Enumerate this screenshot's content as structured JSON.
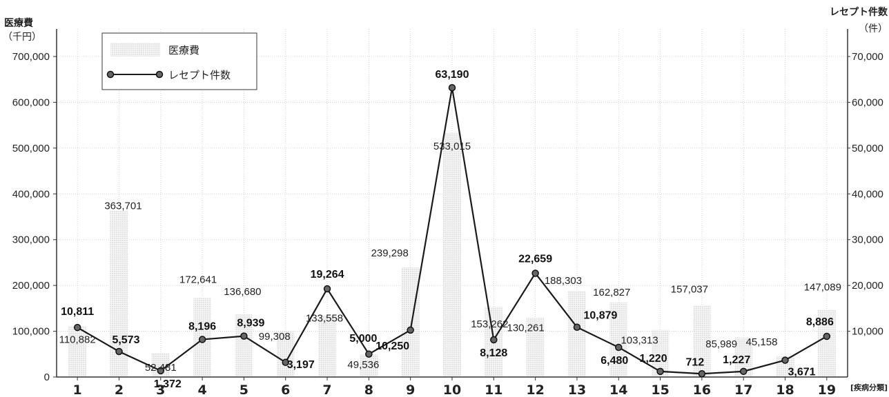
{
  "chart_data": {
    "type": "bar",
    "left_axis": {
      "label": "医療費",
      "unit": "（千円）",
      "ylim": [
        0,
        700000
      ],
      "ticks": [
        "0",
        "100,000",
        "200,000",
        "300,000",
        "400,000",
        "500,000",
        "600,000",
        "700,000"
      ]
    },
    "right_axis": {
      "label": "レセプト件数",
      "unit": "（件）",
      "ylim": [
        0,
        70000
      ],
      "ticks": [
        "10,000",
        "20,000",
        "30,000",
        "40,000",
        "50,000",
        "60,000",
        "70,000"
      ]
    },
    "x_category_label": "[疾病分類]",
    "categories": [
      "1",
      "2",
      "3",
      "4",
      "5",
      "6",
      "7",
      "8",
      "9",
      "10",
      "11",
      "12",
      "13",
      "14",
      "15",
      "16",
      "17",
      "18",
      "19"
    ],
    "series": [
      {
        "name": "医療費",
        "type": "bar",
        "axis": "left",
        "color": "#dcdcdc",
        "values": [
          110882,
          363701,
          52481,
          172641,
          136680,
          99308,
          133558,
          49536,
          239298,
          533015,
          153262,
          130261,
          188303,
          162827,
          103313,
          157037,
          85989,
          45158,
          147089
        ],
        "labels": [
          "110,882",
          "363,701",
          "52,481",
          "172,641",
          "136,680",
          "99,308",
          "133,558",
          "49,536",
          "239,298",
          "533,015",
          "153,262",
          "130,261",
          "188,303",
          "162,827",
          "103,313",
          "157,037",
          "85,989",
          "45,158",
          "147,089"
        ]
      },
      {
        "name": "レセプト件数",
        "type": "line",
        "axis": "right",
        "color": "#1a1a1a",
        "values": [
          10811,
          5573,
          1372,
          8196,
          8939,
          3197,
          19264,
          5000,
          10250,
          63190,
          8128,
          22659,
          10879,
          6480,
          1220,
          712,
          1227,
          3671,
          8886
        ],
        "labels": [
          "10,811",
          "5,573",
          "1,372",
          "8,196",
          "8,939",
          "3,197",
          "19,264",
          "5,000",
          "10,250",
          "63,190",
          "8,128",
          "22,659",
          "10,879",
          "6,480",
          "1,220",
          "712",
          "1,227",
          "3,671",
          "8,886"
        ]
      }
    ],
    "legend": {
      "position": "top-left",
      "entries": [
        "医療費",
        "レセプト件数"
      ]
    },
    "grid": true
  }
}
